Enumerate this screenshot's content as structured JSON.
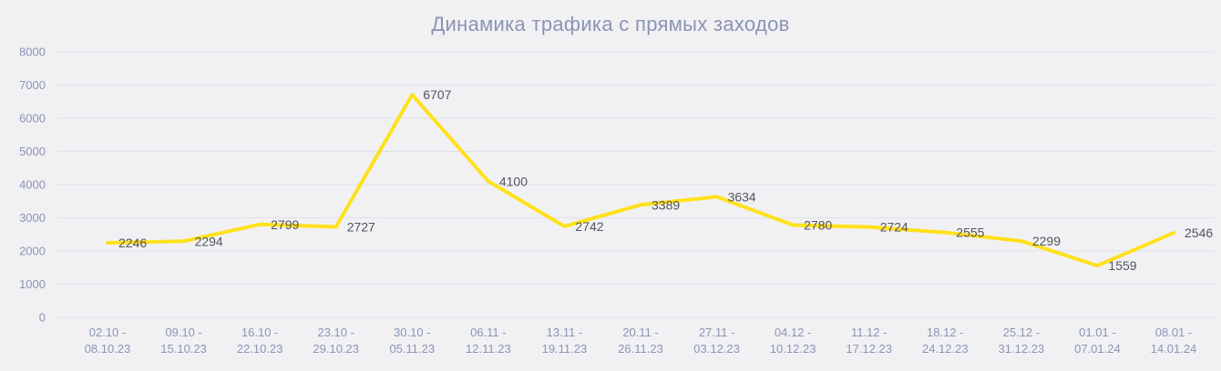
{
  "chart_data": {
    "type": "line",
    "title": "Динамика трафика с прямых заходов",
    "categories": [
      "02.10 - 08.10.23",
      "09.10 - 15.10.23",
      "16.10 - 22.10.23",
      "23.10 - 29.10.23",
      "30.10 - 05.11.23",
      "06.11 - 12.11.23",
      "13.11 - 19.11.23",
      "20.11 - 26.11.23",
      "27.11 - 03.12.23",
      "04.12 - 10.12.23",
      "11.12 - 17.12.23",
      "18.12 - 24.12.23",
      "25.12 - 31.12.23",
      "01.01 - 07.01.24",
      "08.01 - 14.01.24"
    ],
    "values": [
      2246,
      2294,
      2799,
      2727,
      6707,
      4100,
      2742,
      3389,
      3634,
      2780,
      2724,
      2555,
      2299,
      1559,
      2546
    ],
    "yticks": [
      0,
      1000,
      2000,
      3000,
      4000,
      5000,
      6000,
      7000,
      8000
    ],
    "ylim": [
      0,
      8000
    ],
    "grid": true,
    "legend": "none",
    "xlabel": "",
    "ylabel": "",
    "colors": {
      "background": "#f1f1f4",
      "line": "#FFE11C",
      "title": "#8b94b3",
      "axis_label": "#8b94b3",
      "data_label": "#54545e",
      "grid": "#e2e2e9"
    }
  }
}
